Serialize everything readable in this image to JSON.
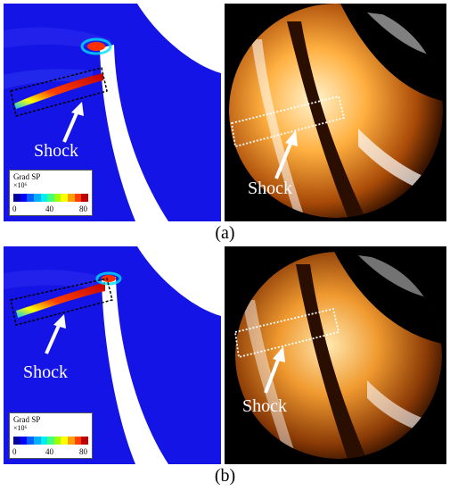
{
  "figure": {
    "panels": [
      {
        "id": "a",
        "caption": "(a)",
        "sim_label": "Shock",
        "exp_label": "Shock",
        "legend": {
          "title": "Grad SP",
          "scale": "×10⁶",
          "ticks": [
            "0",
            "40",
            "80"
          ]
        }
      },
      {
        "id": "b",
        "caption": "(b)",
        "sim_label": "Shock",
        "exp_label": "Shock",
        "legend": {
          "title": "Grad SP",
          "scale": "×10⁶",
          "ticks": [
            "0",
            "40",
            "80"
          ]
        }
      }
    ],
    "colors": {
      "field_blue": "#1414e6",
      "shock_red": "#e01010",
      "exp_background": "#000000",
      "exp_glow": "#ffb040"
    },
    "colormap": [
      "#0000a0",
      "#0000ff",
      "#0060ff",
      "#00b0ff",
      "#00f0f0",
      "#40ff80",
      "#a0ff00",
      "#ffff00",
      "#ffa000",
      "#ff4000",
      "#c00000"
    ]
  }
}
